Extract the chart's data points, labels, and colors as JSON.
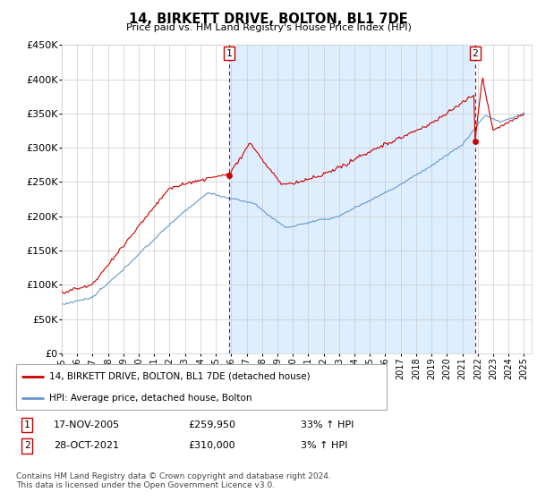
{
  "title": "14, BIRKETT DRIVE, BOLTON, BL1 7DE",
  "subtitle": "Price paid vs. HM Land Registry's House Price Index (HPI)",
  "ylabel_ticks": [
    "£0",
    "£50K",
    "£100K",
    "£150K",
    "£200K",
    "£250K",
    "£300K",
    "£350K",
    "£400K",
    "£450K"
  ],
  "ylim": [
    0,
    450000
  ],
  "xlim_start": 1995.0,
  "xlim_end": 2025.5,
  "sale1_x": 2005.88,
  "sale1_y": 259950,
  "sale2_x": 2021.83,
  "sale2_y": 310000,
  "sale1_label": "17-NOV-2005",
  "sale1_price": "£259,950",
  "sale1_hpi": "33% ↑ HPI",
  "sale2_label": "28-OCT-2021",
  "sale2_price": "£310,000",
  "sale2_hpi": "3% ↑ HPI",
  "legend_line1": "14, BIRKETT DRIVE, BOLTON, BL1 7DE (detached house)",
  "legend_line2": "HPI: Average price, detached house, Bolton",
  "footer": "Contains HM Land Registry data © Crown copyright and database right 2024.\nThis data is licensed under the Open Government Licence v3.0.",
  "line_color_red": "#cc0000",
  "line_color_blue": "#6699cc",
  "vline_color": "#cc0000",
  "grid_color": "#cccccc",
  "shade_color": "#ddeeff",
  "background_color": "#ffffff",
  "fig_width": 6.0,
  "fig_height": 5.6,
  "dpi": 100
}
